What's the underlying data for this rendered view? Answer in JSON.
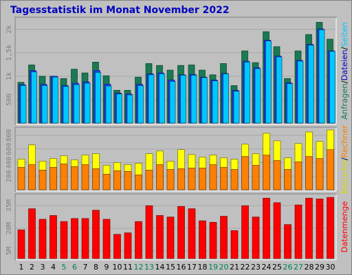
{
  "title": "Tagesstatistik im Monat November 2022",
  "colors": {
    "anfragen": "#1a7a52",
    "dateien": "#00c8ff",
    "seiten": "#2040ff",
    "besuche": "#ffff00",
    "rechner": "#ff8000",
    "datenmenge": "#ff0000",
    "weekday": "#000000",
    "weekend": "#008050"
  },
  "chart_data": [
    {
      "type": "bar",
      "panel": "top",
      "ylabel_parts": [
        {
          "text": "Anfragen",
          "color": "#1a7a52"
        },
        {
          "text": "/",
          "color": "#000000"
        },
        {
          "text": "Dateien",
          "color": "#0000c0"
        },
        {
          "text": "/",
          "color": "#000000"
        },
        {
          "text": "Seiten",
          "color": "#00c8ff"
        }
      ],
      "yticks": [
        "500",
        "1k",
        "1,5k",
        "2k"
      ],
      "ylim": [
        0,
        2200
      ],
      "categories": [
        "1",
        "2",
        "3",
        "4",
        "5",
        "6",
        "7",
        "8",
        "9",
        "10",
        "11",
        "12",
        "13",
        "14",
        "15",
        "16",
        "17",
        "18",
        "19",
        "20",
        "21",
        "22",
        "23",
        "24",
        "25",
        "26",
        "27",
        "28",
        "29",
        "30"
      ],
      "series": [
        {
          "key": "anfragen",
          "values": [
            870,
            1240,
            1000,
            1000,
            950,
            1150,
            1070,
            1300,
            1010,
            700,
            700,
            980,
            1270,
            1230,
            1130,
            1230,
            1240,
            1130,
            1030,
            1270,
            800,
            1540,
            1290,
            1950,
            1630,
            950,
            1540,
            1890,
            2150,
            1790
          ]
        },
        {
          "key": "seiten",
          "values": [
            820,
            1120,
            830,
            1000,
            800,
            850,
            880,
            1120,
            830,
            640,
            620,
            830,
            1050,
            1070,
            920,
            1030,
            1040,
            980,
            920,
            1060,
            700,
            1320,
            1180,
            1770,
            1430,
            860,
            1340,
            1680,
            2010,
            1540
          ]
        },
        {
          "key": "dateien",
          "values": [
            800,
            1090,
            800,
            980,
            780,
            820,
            850,
            1080,
            790,
            620,
            600,
            800,
            1030,
            1050,
            890,
            1020,
            1020,
            970,
            900,
            1050,
            680,
            1300,
            1160,
            1750,
            1410,
            840,
            1320,
            1660,
            1990,
            1530
          ]
        }
      ]
    },
    {
      "type": "bar",
      "panel": "middle",
      "ylabel_parts": [
        {
          "text": "Besuche",
          "color": "#d8d800"
        },
        {
          "text": "/",
          "color": "#000000"
        },
        {
          "text": "Rechner",
          "color": "#ff8000"
        }
      ],
      "yticks": [
        "200",
        "400",
        "600",
        "800"
      ],
      "ylim": [
        0,
        880
      ],
      "categories": [
        "1",
        "2",
        "3",
        "4",
        "5",
        "6",
        "7",
        "8",
        "9",
        "10",
        "11",
        "12",
        "13",
        "14",
        "15",
        "16",
        "17",
        "18",
        "19",
        "20",
        "21",
        "22",
        "23",
        "24",
        "25",
        "26",
        "27",
        "28",
        "29",
        "30"
      ],
      "series": [
        {
          "key": "besuche",
          "values": [
            450,
            660,
            420,
            460,
            500,
            440,
            510,
            530,
            360,
            400,
            370,
            390,
            530,
            570,
            420,
            590,
            520,
            480,
            510,
            470,
            450,
            670,
            530,
            830,
            720,
            470,
            680,
            850,
            710,
            880
          ]
        },
        {
          "key": "rechner",
          "values": [
            330,
            370,
            290,
            330,
            380,
            340,
            370,
            310,
            230,
            280,
            270,
            220,
            290,
            370,
            300,
            310,
            320,
            320,
            370,
            330,
            300,
            490,
            360,
            510,
            430,
            300,
            410,
            490,
            460,
            590
          ]
        }
      ]
    },
    {
      "type": "bar",
      "panel": "bottom",
      "ylabel_parts": [
        {
          "text": "Datenmenge",
          "color": "#ff0000"
        }
      ],
      "yticks": [
        "5M",
        "20M",
        "35M"
      ],
      "ytick_values": [
        5,
        20,
        35
      ],
      "ylim": [
        0,
        41
      ],
      "categories": [
        "1",
        "2",
        "3",
        "4",
        "5",
        "6",
        "7",
        "8",
        "9",
        "10",
        "11",
        "12",
        "13",
        "14",
        "15",
        "16",
        "17",
        "18",
        "19",
        "20",
        "21",
        "22",
        "23",
        "24",
        "25",
        "26",
        "27",
        "28",
        "29",
        "30"
      ],
      "weekend_days": [
        5,
        6,
        12,
        13,
        19,
        20,
        26,
        27
      ],
      "series": [
        {
          "key": "datenmenge",
          "values": [
            19,
            33,
            26,
            28.5,
            24.5,
            26.5,
            26.5,
            32,
            26,
            16,
            17,
            24.5,
            35,
            28.5,
            27.5,
            34.5,
            33,
            25,
            24,
            28,
            18.5,
            35,
            27.5,
            40,
            37,
            22.5,
            35.5,
            40,
            39.5,
            40.5
          ]
        }
      ]
    }
  ]
}
